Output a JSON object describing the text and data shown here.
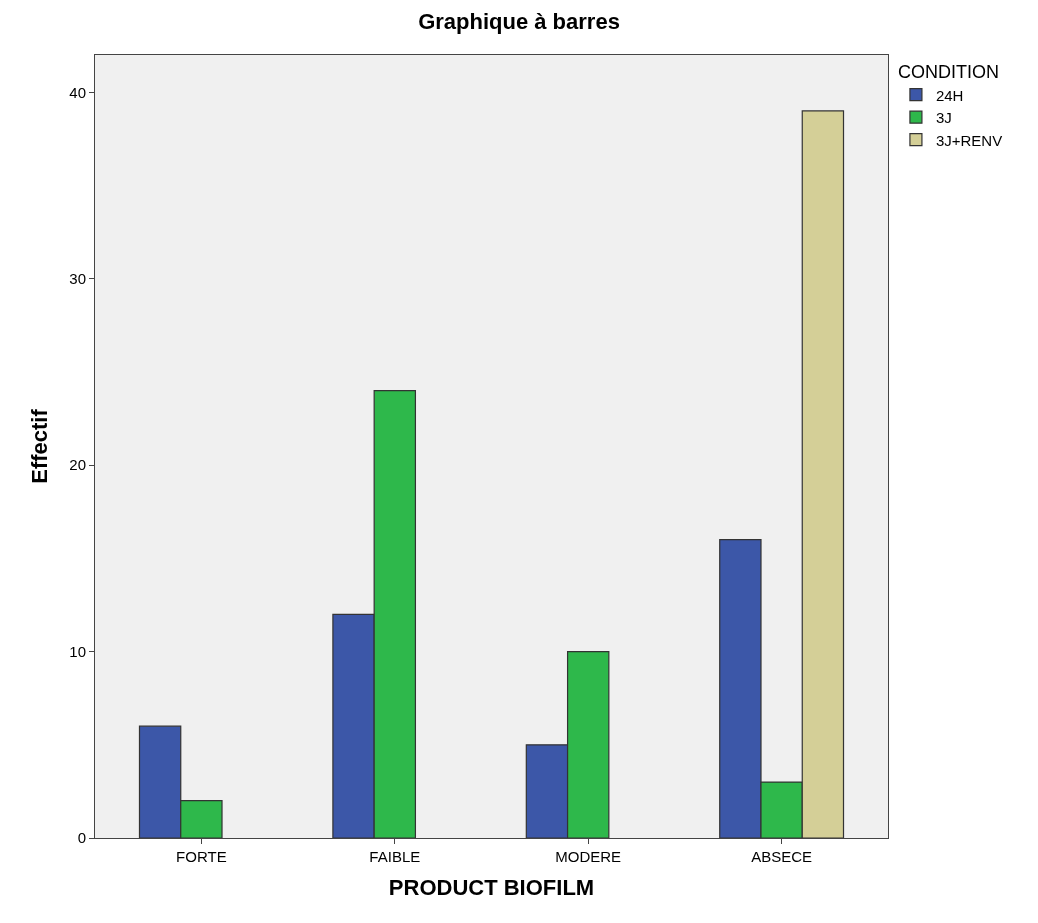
{
  "chart_data": {
    "type": "bar",
    "title": "Graphique à barres",
    "xlabel": "PRODUCT BIOFILM",
    "ylabel": "Effectif",
    "legend_title": "CONDITION",
    "categories": [
      "FORTE",
      "FAIBLE",
      "MODERE",
      "ABSECE"
    ],
    "series": [
      {
        "name": "24H",
        "color": "#3c57a8",
        "values": [
          6,
          12,
          5,
          16
        ]
      },
      {
        "name": "3J",
        "color": "#2eb84b",
        "values": [
          2,
          24,
          10,
          3
        ]
      },
      {
        "name": "3J+RENV",
        "color": "#d4cf97",
        "values": [
          null,
          null,
          null,
          39
        ]
      }
    ],
    "ylim": [
      0,
      42
    ],
    "yticks": [
      0,
      10,
      20,
      30,
      40
    ],
    "grid": false,
    "legend": "top right"
  }
}
